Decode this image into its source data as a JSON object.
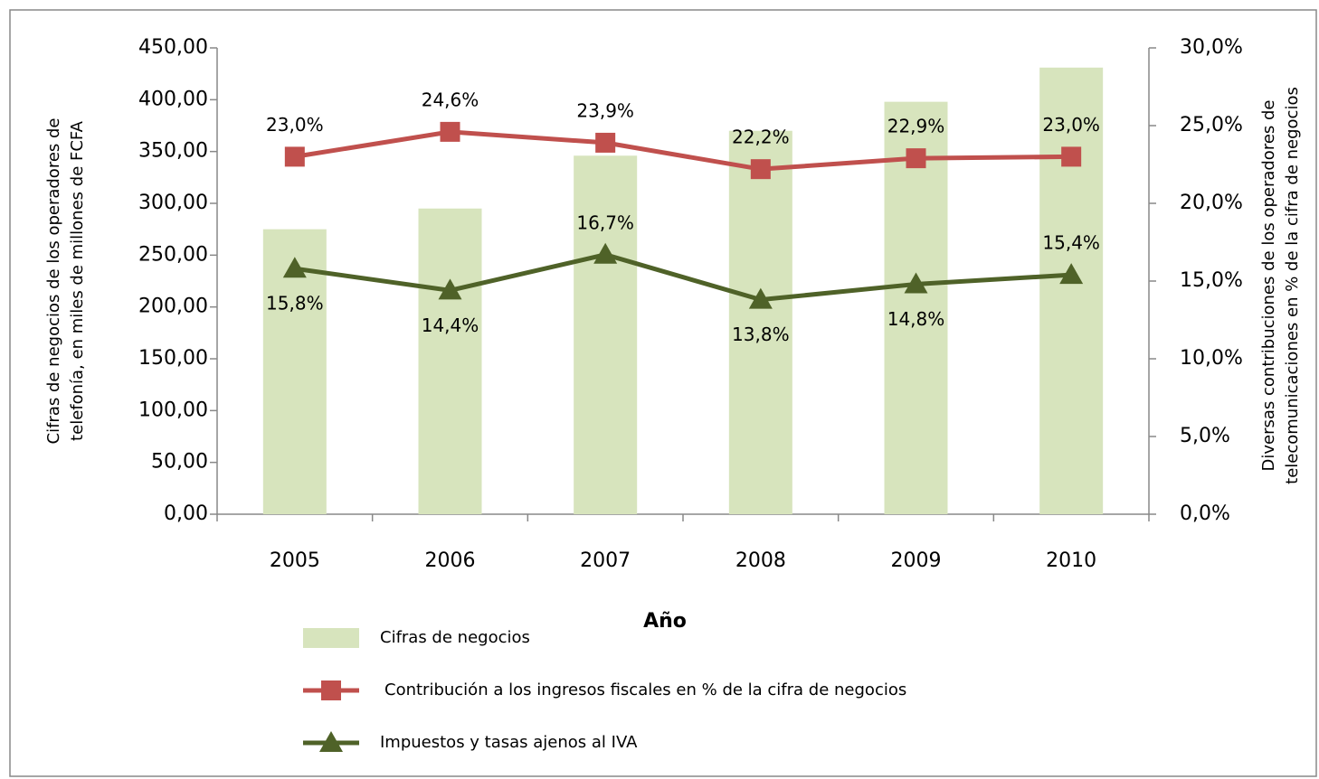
{
  "chart_data": {
    "type": "bar_line",
    "x_label": "Año",
    "y_label": [
      "Cifras de negocios de los operadores de",
      "telefonía, en miles de millones de FCFA"
    ],
    "y2_label": [
      "Diversas contribuciones de los operadores de",
      "telecomunicaciones en % de la cifra de negocios"
    ],
    "categories": [
      "2005",
      "2006",
      "2007",
      "2008",
      "2009",
      "2010"
    ],
    "series": [
      {
        "name": "Cifras de negocios",
        "type": "bar",
        "color": "#d7e4bd",
        "values": [
          275,
          295,
          346,
          370,
          398,
          431
        ]
      },
      {
        "name": "Contribución a los ingresos fiscales en % de la cifra de negocios",
        "type": "line",
        "marker": "square",
        "axis": "y2",
        "color": "#c0504d",
        "values": [
          23.0,
          24.6,
          23.9,
          22.2,
          22.9,
          23.0
        ],
        "value_labels": [
          "23,0%",
          "24,6%",
          "23,9%",
          "22,2%",
          "22,9%",
          "23,0%"
        ]
      },
      {
        "name": "Impuestos y tasas ajenos al IVA",
        "type": "line",
        "marker": "triangle",
        "axis": "y2",
        "color": "#4f6228",
        "values": [
          15.8,
          14.4,
          16.7,
          13.8,
          14.8,
          15.4
        ],
        "value_labels": [
          "15,8%",
          "14,4%",
          "16,7%",
          "13,8%",
          "14,8%",
          "15,4%"
        ]
      }
    ],
    "ylim": [
      0,
      450
    ],
    "yticks": [
      {
        "value": 0,
        "label": "0,00"
      },
      {
        "value": 50,
        "label": "50,00"
      },
      {
        "value": 100,
        "label": "100,00"
      },
      {
        "value": 150,
        "label": "150,00"
      },
      {
        "value": 200,
        "label": "200,00"
      },
      {
        "value": 250,
        "label": "250,00"
      },
      {
        "value": 300,
        "label": "300,00"
      },
      {
        "value": 350,
        "label": "350,00"
      },
      {
        "value": 400,
        "label": "400,00"
      },
      {
        "value": 450,
        "label": "450,00"
      }
    ],
    "y2lim": [
      0,
      30
    ],
    "y2ticks": [
      {
        "value": 0,
        "label": "0,0%"
      },
      {
        "value": 5,
        "label": "5,0%"
      },
      {
        "value": 10,
        "label": "10,0%"
      },
      {
        "value": 15,
        "label": "15,0%"
      },
      {
        "value": 20,
        "label": "20,0%"
      },
      {
        "value": 25,
        "label": "25,0%"
      },
      {
        "value": 30,
        "label": "30,0%"
      }
    ],
    "grid": false
  }
}
